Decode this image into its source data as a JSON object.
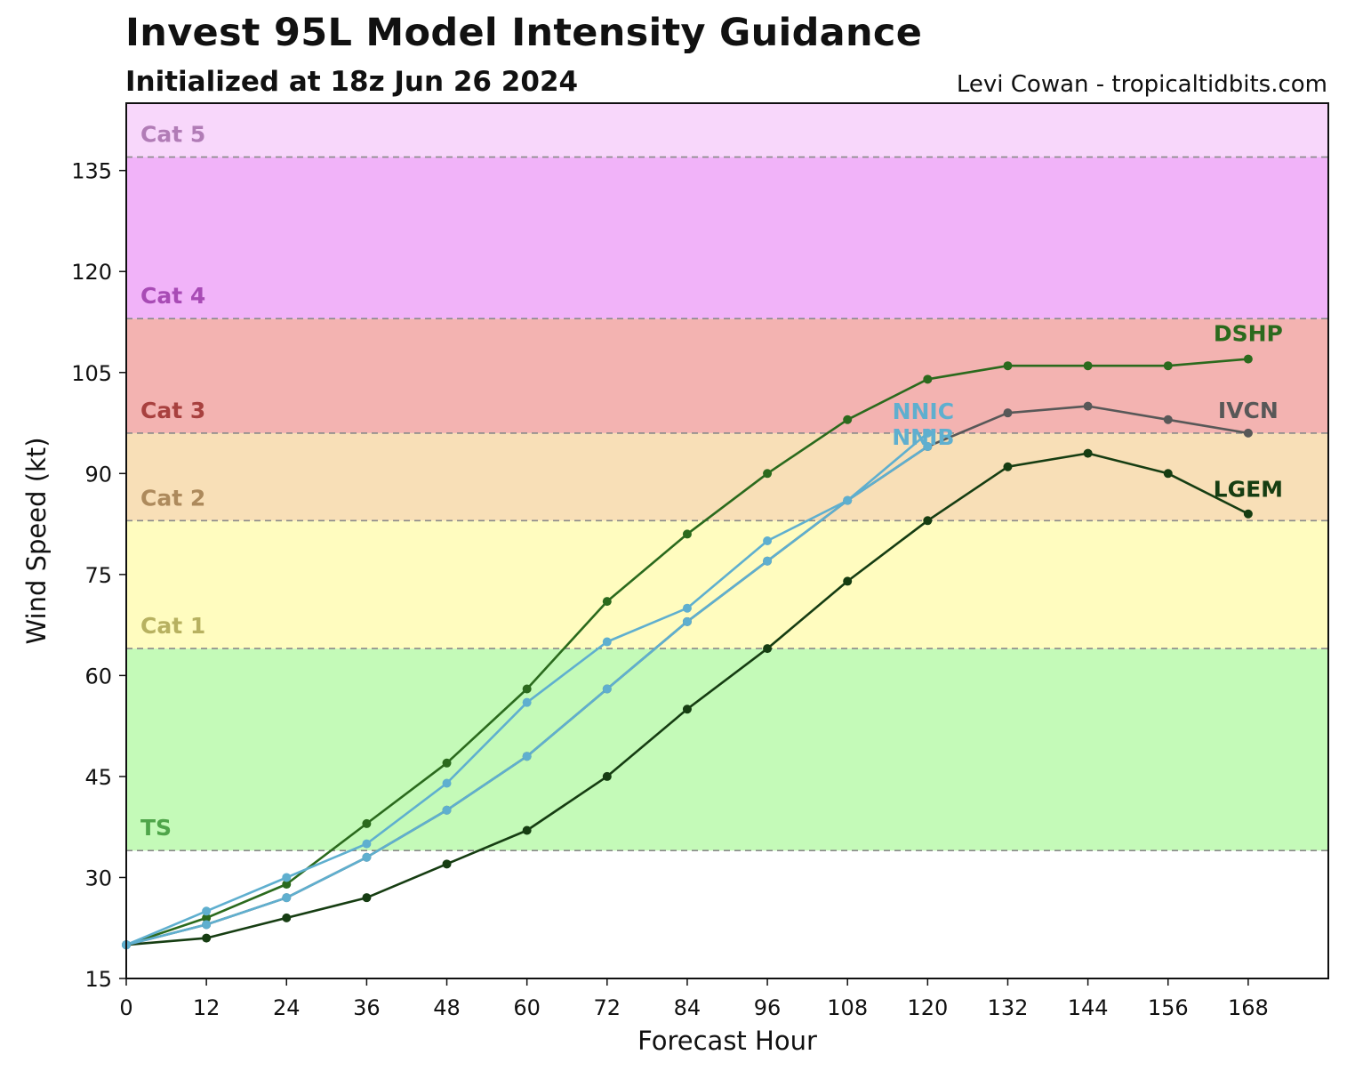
{
  "title": "Invest 95L Model Intensity Guidance",
  "subtitle": "Initialized at 18z Jun 26 2024",
  "credit": "Levi Cowan - tropicaltidbits.com",
  "chart_data": {
    "type": "line",
    "xlabel": "Forecast Hour",
    "ylabel": "Wind Speed (kt)",
    "xlim": [
      0,
      180
    ],
    "ylim": [
      15,
      145
    ],
    "xticks": [
      0,
      12,
      24,
      36,
      48,
      60,
      72,
      84,
      96,
      108,
      120,
      132,
      144,
      156,
      168
    ],
    "yticks": [
      15,
      30,
      45,
      60,
      75,
      90,
      105,
      120,
      135
    ],
    "grid": false,
    "legend": "none",
    "bands": [
      {
        "label": "",
        "min": 15,
        "max": 34,
        "color": "#ffffff"
      },
      {
        "label": "TS",
        "min": 34,
        "max": 64,
        "color": "#c4fab8",
        "label_color": "#4fa54a"
      },
      {
        "label": "Cat 1",
        "min": 64,
        "max": 83,
        "color": "#fffcbf",
        "label_color": "#b7b160"
      },
      {
        "label": "Cat 2",
        "min": 83,
        "max": 96,
        "color": "#f8dfb7",
        "label_color": "#ad8a5c"
      },
      {
        "label": "Cat 3",
        "min": 96,
        "max": 113,
        "color": "#f3b3b1",
        "label_color": "#a8413f"
      },
      {
        "label": "Cat 4",
        "min": 113,
        "max": 137,
        "color": "#f1b3f9",
        "label_color": "#a84bb5"
      },
      {
        "label": "Cat 5",
        "min": 137,
        "max": 145,
        "color": "#f8d7fb",
        "label_color": "#b17cb6"
      }
    ],
    "series": [
      {
        "name": "DSHP",
        "color": "#2b6a1d",
        "x": [
          0,
          12,
          24,
          36,
          48,
          60,
          72,
          84,
          96,
          108,
          120,
          132,
          144,
          156,
          168
        ],
        "values": [
          20,
          24,
          29,
          38,
          47,
          58,
          71,
          81,
          90,
          98,
          104,
          106,
          106,
          106,
          107
        ]
      },
      {
        "name": "IVCN",
        "color": "#585858",
        "x": [
          0,
          12,
          24,
          36,
          48,
          60,
          72,
          84,
          96,
          108,
          120,
          132,
          144,
          156,
          168
        ],
        "values": [
          20,
          23,
          27,
          33,
          40,
          48,
          58,
          68,
          77,
          86,
          94,
          99,
          100,
          98,
          96
        ]
      },
      {
        "name": "LGEM",
        "color": "#163d12",
        "x": [
          0,
          12,
          24,
          36,
          48,
          60,
          72,
          84,
          96,
          108,
          120,
          132,
          144,
          156,
          168
        ],
        "values": [
          20,
          21,
          24,
          27,
          32,
          37,
          45,
          55,
          64,
          74,
          83,
          91,
          93,
          90,
          84
        ]
      },
      {
        "name": "NNIC",
        "color": "#5fafcf",
        "x": [
          0,
          12,
          24,
          36,
          48,
          60,
          72,
          84,
          96,
          108,
          120
        ],
        "values": [
          20,
          25,
          30,
          35,
          44,
          56,
          65,
          70,
          80,
          86,
          96
        ]
      },
      {
        "name": "NNIB",
        "color": "#5fafcf",
        "x": [
          0,
          12,
          24,
          36,
          48,
          60,
          72,
          84,
          96,
          108,
          120
        ],
        "values": [
          20,
          23,
          27,
          33,
          40,
          48,
          58,
          68,
          77,
          86,
          94
        ]
      }
    ]
  }
}
